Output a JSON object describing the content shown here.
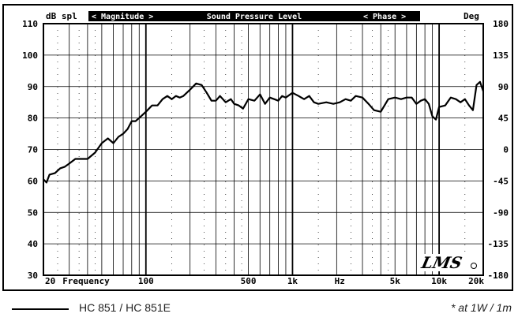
{
  "header": {
    "left_unit": "dB spl",
    "magnitude": "< Magnitude >",
    "title": "Sound Pressure Level",
    "phase": "< Phase >",
    "right_unit": "Deg"
  },
  "legend": {
    "series_label": "HC 851 / HC 851E",
    "note": "* at 1W / 1m"
  },
  "logo_text": "LMS",
  "colors": {
    "grid": "#000000",
    "header_bg": "#000000",
    "curve": "#000000",
    "background": "#ffffff"
  },
  "chart_data": {
    "type": "line",
    "title": "Sound Pressure Level",
    "xscale": "log",
    "xlim": [
      20,
      20000
    ],
    "ylim": [
      30,
      110
    ],
    "y2lim": [
      -180,
      180
    ],
    "grid": true,
    "x_ticks": [
      {
        "v": 20,
        "label": "20"
      },
      {
        "v": 35,
        "label": "Frequency"
      },
      {
        "v": 100,
        "label": "100"
      },
      {
        "v": 500,
        "label": "500"
      },
      {
        "v": 1000,
        "label": "1k"
      },
      {
        "v": 2100,
        "label": "Hz"
      },
      {
        "v": 5000,
        "label": "5k"
      },
      {
        "v": 10000,
        "label": "10k"
      },
      {
        "v": 20000,
        "label": "20k"
      }
    ],
    "y_ticks": [
      30,
      40,
      50,
      60,
      70,
      80,
      90,
      100,
      110
    ],
    "y2_ticks": [
      -180,
      -135,
      -90,
      -45,
      0,
      45,
      90,
      135,
      180
    ],
    "series": [
      {
        "name": "HC 851 / HC 851E",
        "x": [
          20,
          21,
          22,
          24,
          26,
          28,
          30,
          33,
          36,
          40,
          45,
          50,
          55,
          60,
          65,
          70,
          75,
          80,
          85,
          90,
          95,
          100,
          105,
          110,
          120,
          130,
          140,
          150,
          160,
          170,
          180,
          200,
          220,
          240,
          260,
          280,
          300,
          320,
          350,
          380,
          400,
          430,
          460,
          500,
          550,
          600,
          650,
          700,
          750,
          800,
          850,
          900,
          1000,
          1100,
          1200,
          1300,
          1400,
          1500,
          1700,
          1900,
          2100,
          2300,
          2500,
          2700,
          3000,
          3300,
          3600,
          4000,
          4500,
          5000,
          5500,
          6000,
          6500,
          7000,
          7500,
          8000,
          8500,
          9000,
          9500,
          10000,
          11000,
          12000,
          13000,
          14000,
          15000,
          16000,
          17000,
          18000,
          19000,
          20000
        ],
        "values": [
          60.5,
          59.5,
          62,
          62.5,
          64,
          64.5,
          65.5,
          67,
          67,
          67,
          69,
          72,
          73.5,
          72,
          74,
          75,
          76.5,
          79,
          79,
          80,
          81,
          82,
          83,
          84,
          84,
          86,
          87,
          86,
          87,
          86.5,
          87,
          89,
          91,
          90.5,
          88,
          85.5,
          85.5,
          87,
          85,
          86,
          84.5,
          84,
          83,
          86,
          85.5,
          87.5,
          84.5,
          86.5,
          86,
          85.5,
          87,
          86.5,
          88,
          87,
          86,
          87,
          85,
          84.5,
          85,
          84.5,
          85,
          86,
          85.5,
          87,
          86.5,
          84.5,
          82.5,
          82,
          86,
          86.5,
          86,
          86.5,
          86.5,
          84.5,
          85.5,
          86,
          84.5,
          80.5,
          79.5,
          83.5,
          84,
          86.5,
          86,
          85,
          86,
          84,
          82.5,
          90.5,
          91.5,
          88.5
        ]
      }
    ]
  }
}
